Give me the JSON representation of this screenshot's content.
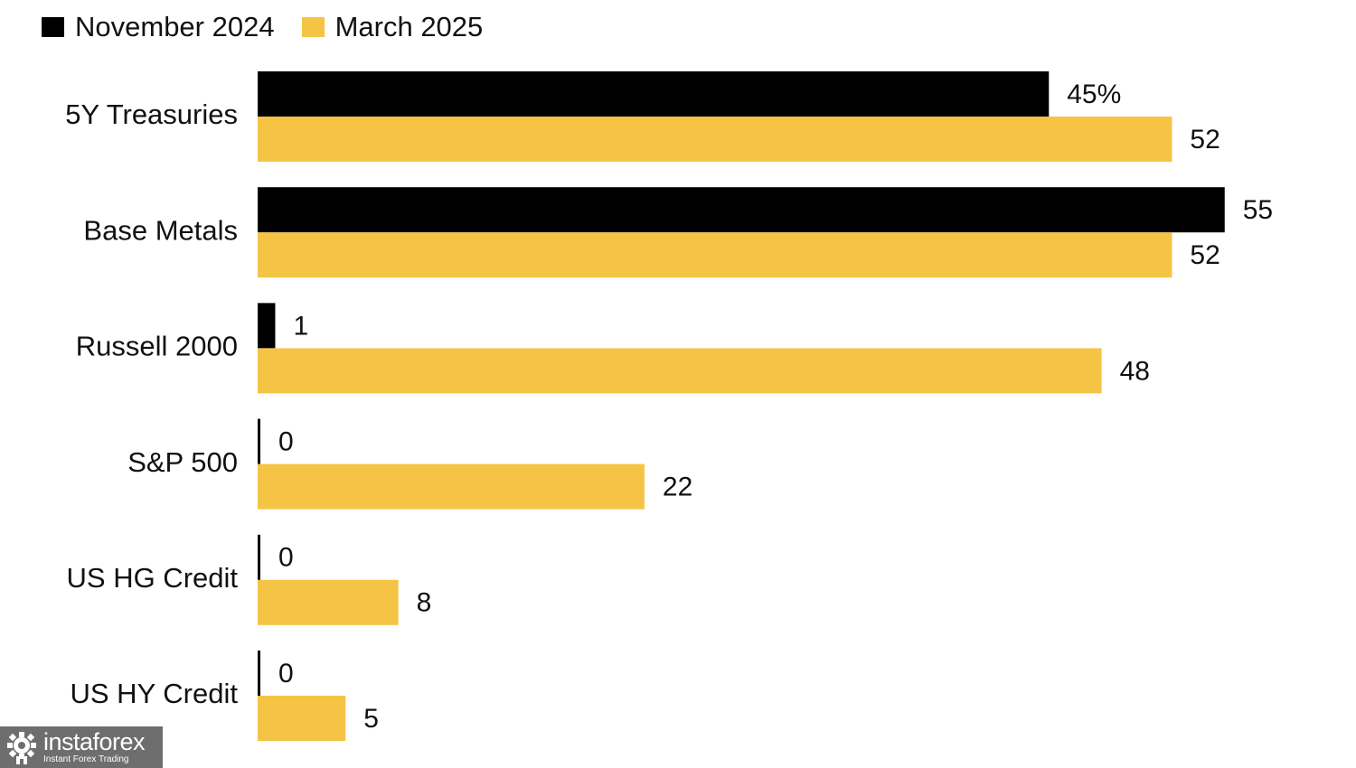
{
  "legend": {
    "series_1": "November 2024",
    "series_2": "March 2025"
  },
  "chart_data": {
    "type": "bar",
    "orientation": "horizontal",
    "categories": [
      "5Y Treasuries",
      "Base Metals",
      "Russell 2000",
      "S&P 500",
      "US HG Credit",
      "US HY Credit"
    ],
    "series": [
      {
        "name": "November 2024",
        "color": "#000000",
        "values": [
          45,
          55,
          1,
          0,
          0,
          0
        ],
        "labels": [
          "45%",
          "55",
          "1",
          "0",
          "0",
          "0"
        ]
      },
      {
        "name": "March 2025",
        "color": "#f5c445",
        "values": [
          52,
          52,
          48,
          22,
          8,
          5
        ],
        "labels": [
          "52",
          "52",
          "48",
          "22",
          "8",
          "5"
        ]
      }
    ],
    "xlim": [
      0,
      55
    ],
    "grid": false,
    "legend_position": "top-left"
  },
  "watermark": {
    "brand": "instaforex",
    "tagline": "Instant Forex Trading"
  }
}
